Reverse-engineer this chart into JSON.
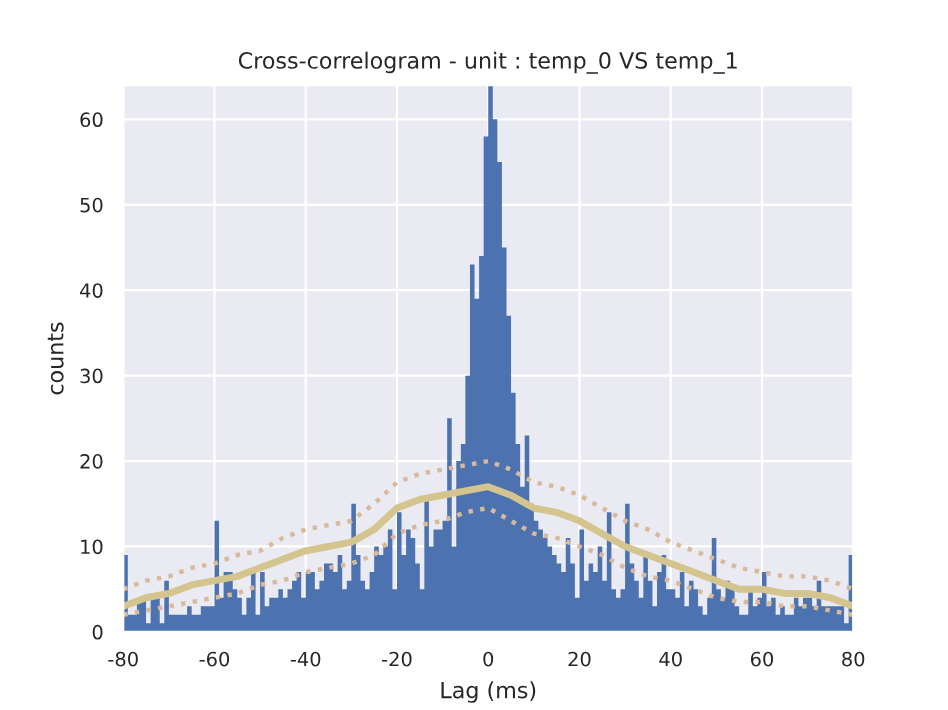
{
  "chart_data": {
    "type": "histogram",
    "title": "Cross-correlogram - unit : temp_0 VS temp_1",
    "xlabel": "Lag (ms)",
    "ylabel": "counts",
    "xlim": [
      -80,
      80
    ],
    "ylim": [
      0,
      64
    ],
    "xticks": [
      -80,
      -60,
      -40,
      -20,
      0,
      20,
      40,
      60,
      80
    ],
    "yticks": [
      0,
      10,
      20,
      30,
      40,
      50,
      60
    ],
    "grid": true,
    "series": [
      {
        "color": "#4c72b0",
        "bins": [
          -80,
          -79,
          -78,
          -77,
          -76,
          -75,
          -74,
          -73,
          -72,
          -71,
          -70,
          -69,
          -68,
          -67,
          -66,
          -65,
          -64,
          -63,
          -62,
          -61,
          -60,
          -59,
          -58,
          -57,
          -56,
          -55,
          -54,
          -53,
          -52,
          -51,
          -50,
          -49,
          -48,
          -47,
          -46,
          -45,
          -44,
          -43,
          -42,
          -41,
          -40,
          -39,
          -38,
          -37,
          -36,
          -35,
          -34,
          -33,
          -32,
          -31,
          -30,
          -29,
          -28,
          -27,
          -26,
          -25,
          -24,
          -23,
          -22,
          -21,
          -20,
          -19,
          -18,
          -17,
          -16,
          -15,
          -14,
          -13,
          -12,
          -11,
          -10,
          -9,
          -8,
          -7,
          -6,
          -5,
          -4,
          -3,
          -2,
          -1,
          0,
          1,
          2,
          3,
          4,
          5,
          6,
          7,
          8,
          9,
          10,
          11,
          12,
          13,
          14,
          15,
          16,
          17,
          18,
          19,
          20,
          21,
          22,
          23,
          24,
          25,
          26,
          27,
          28,
          29,
          30,
          31,
          32,
          33,
          34,
          35,
          36,
          37,
          38,
          39,
          40,
          41,
          42,
          43,
          44,
          45,
          46,
          47,
          48,
          49,
          50,
          51,
          52,
          53,
          54,
          55,
          56,
          57,
          58,
          59,
          60,
          61,
          62,
          63,
          64,
          65,
          66,
          67,
          68,
          69,
          70,
          71,
          72,
          73,
          74,
          75,
          76,
          77,
          78,
          79,
          80
        ],
        "values": [
          9,
          2,
          2,
          4,
          4,
          1,
          4,
          4,
          1,
          6,
          2,
          2,
          2,
          2,
          3,
          2,
          2,
          3,
          3,
          3,
          13,
          4,
          7,
          7,
          5,
          4,
          2,
          4,
          7,
          2,
          7,
          3,
          4,
          4,
          5,
          4,
          5,
          6,
          7,
          4,
          7,
          7,
          5,
          6,
          8,
          8,
          7,
          9,
          5,
          6,
          15,
          9,
          6,
          5,
          7,
          10,
          9,
          10,
          12,
          5,
          14,
          9,
          12,
          11,
          8,
          5,
          16,
          10,
          12,
          12,
          13,
          25,
          10,
          20,
          22,
          30,
          43,
          39,
          44,
          58,
          64,
          60,
          55,
          45,
          37,
          28,
          22,
          17,
          23,
          15,
          13,
          12,
          11,
          10,
          9,
          8,
          7,
          11,
          8,
          4,
          12,
          6,
          8,
          7,
          10,
          6,
          14,
          5,
          4,
          5,
          15,
          8,
          6,
          4,
          9,
          6,
          3,
          7,
          9,
          5,
          5,
          4,
          7,
          3,
          6,
          5,
          3,
          2,
          4,
          11,
          5,
          4,
          6,
          5,
          3,
          2,
          2,
          5,
          3,
          4,
          7,
          3,
          4,
          2,
          3,
          2,
          2,
          4,
          3,
          4,
          4,
          3,
          6,
          3,
          3,
          3,
          3,
          3,
          1,
          9
        ]
      },
      {
        "type": "line",
        "color": "#d4c48e",
        "line_style": "solid",
        "x": [
          -80,
          -75,
          -70,
          -65,
          -60,
          -55,
          -50,
          -45,
          -40,
          -35,
          -30,
          -25,
          -20,
          -15,
          -10,
          -5,
          0,
          5,
          10,
          15,
          20,
          25,
          30,
          35,
          40,
          45,
          50,
          55,
          60,
          65,
          70,
          75,
          80
        ],
        "values": [
          3,
          4,
          4.5,
          5.5,
          6,
          6.5,
          7.5,
          8.5,
          9.5,
          10,
          10.5,
          12,
          14.5,
          15.5,
          16,
          16.5,
          17,
          16,
          14.5,
          14,
          13,
          11.5,
          10,
          9,
          8,
          7,
          6,
          5,
          5,
          4.5,
          4.5,
          4,
          3
        ]
      },
      {
        "type": "line",
        "color": "#d9b99b",
        "line_style": "dotted",
        "x": [
          -80,
          -75,
          -70,
          -65,
          -60,
          -55,
          -50,
          -45,
          -40,
          -35,
          -30,
          -25,
          -20,
          -15,
          -10,
          -5,
          0,
          5,
          10,
          15,
          20,
          25,
          30,
          35,
          40,
          45,
          50,
          55,
          60,
          65,
          70,
          75,
          80
        ],
        "values": [
          5,
          6,
          6.5,
          7.5,
          8,
          9,
          9.5,
          11,
          12,
          12.5,
          13,
          15,
          17.5,
          18.5,
          19,
          19.5,
          20,
          19,
          17.5,
          17,
          16,
          14.5,
          13,
          12,
          10.5,
          9.5,
          8.5,
          7.5,
          7,
          6.5,
          6.5,
          6,
          5
        ]
      },
      {
        "type": "line",
        "color": "#d9b99b",
        "line_style": "dotted",
        "x": [
          -80,
          -75,
          -70,
          -65,
          -60,
          -55,
          -50,
          -45,
          -40,
          -35,
          -30,
          -25,
          -20,
          -15,
          -10,
          -5,
          0,
          5,
          10,
          15,
          20,
          25,
          30,
          35,
          40,
          45,
          50,
          55,
          60,
          65,
          70,
          75,
          80
        ],
        "values": [
          2,
          2.5,
          3,
          3.5,
          4,
          4.5,
          5.5,
          6,
          7,
          7.5,
          8,
          9,
          11.5,
          12.5,
          13,
          14,
          14.5,
          13,
          11.5,
          11,
          10,
          9,
          7.5,
          6.5,
          6,
          5,
          4,
          3.5,
          3.5,
          3,
          3,
          2.5,
          2
        ]
      }
    ]
  }
}
